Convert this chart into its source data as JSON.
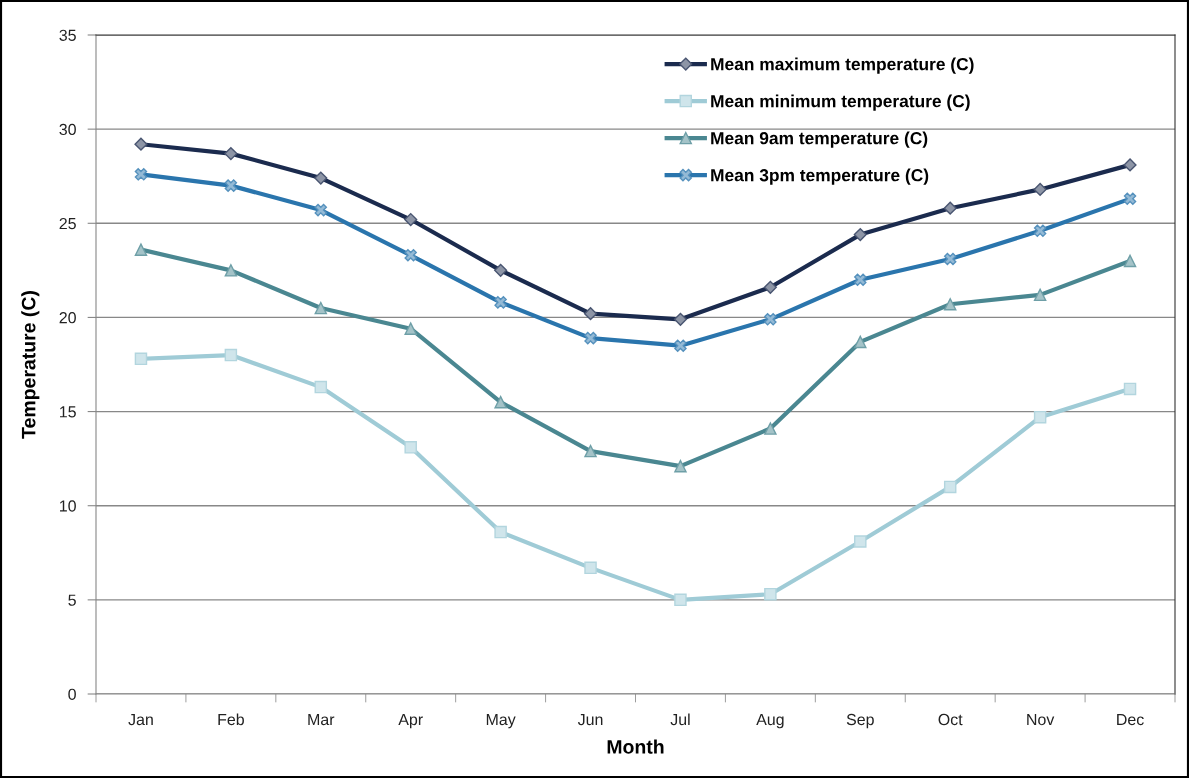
{
  "chart_data": {
    "type": "line",
    "xlabel": "Month",
    "ylabel": "Temperature (C)",
    "categories": [
      "Jan",
      "Feb",
      "Mar",
      "Apr",
      "May",
      "Jun",
      "Jul",
      "Aug",
      "Sep",
      "Oct",
      "Nov",
      "Dec"
    ],
    "ylim": [
      0,
      35
    ],
    "yticks": [
      0,
      5,
      10,
      15,
      20,
      25,
      30,
      35
    ],
    "grid": "y",
    "legend": "top right",
    "series": [
      {
        "name": "Mean maximum temperature (C)",
        "color": "#1b2b4e",
        "marker": "diamond",
        "values": [
          29.2,
          28.7,
          27.4,
          25.2,
          22.5,
          20.2,
          19.9,
          21.6,
          24.4,
          25.8,
          26.8,
          28.1
        ]
      },
      {
        "name": "Mean minimum temperature (C)",
        "color": "#9fcbd6",
        "marker": "square",
        "values": [
          17.8,
          18.0,
          16.3,
          13.1,
          8.6,
          6.7,
          5.0,
          5.3,
          8.1,
          11.0,
          14.7,
          16.2
        ]
      },
      {
        "name": "Mean 9am temperature (C)",
        "color": "#4a8791",
        "marker": "triangle",
        "values": [
          23.6,
          22.5,
          20.5,
          19.4,
          15.5,
          12.9,
          12.1,
          14.1,
          18.7,
          20.7,
          21.2,
          23.0
        ]
      },
      {
        "name": "Mean 3pm temperature (C)",
        "color": "#2a75ad",
        "marker": "cross",
        "values": [
          27.6,
          27.0,
          25.7,
          23.3,
          20.8,
          18.9,
          18.5,
          19.9,
          22.0,
          23.1,
          24.6,
          26.3
        ]
      }
    ]
  }
}
